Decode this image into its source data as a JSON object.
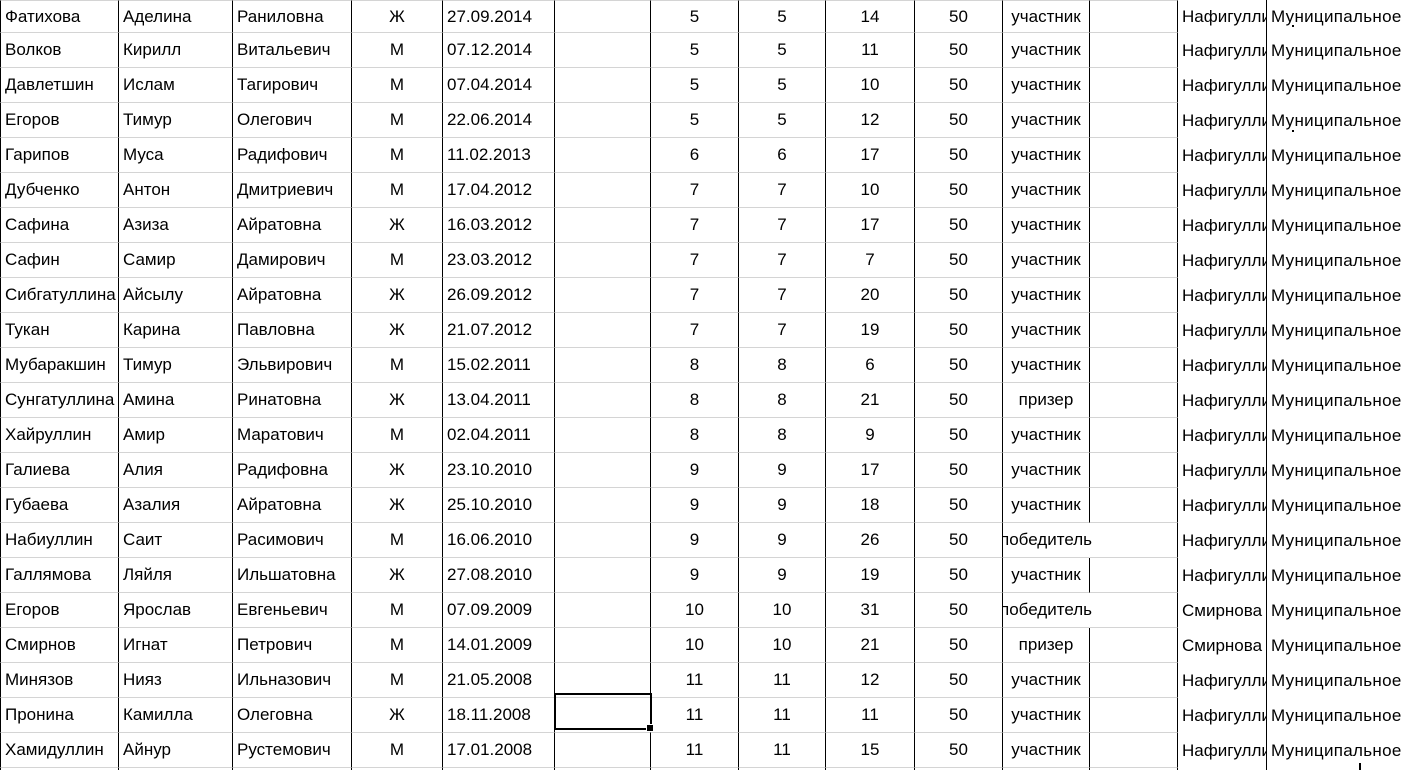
{
  "colors": {
    "background": "#ffffff",
    "text": "#000000",
    "cell_border": "#000000",
    "grid_line": "#d4d4d4",
    "selection_border": "#000000"
  },
  "selection": {
    "row": 21,
    "column_after": "birth_date",
    "note": "empty cell selected with thick border and fill handle"
  },
  "table": {
    "overflow_status_value": "победитель",
    "rows": [
      {
        "surname": "Фатихова",
        "first_name": "Аделина",
        "patronymic": "Раниловна",
        "gender": "Ж",
        "birth_date": "27.09.2014",
        "blank1": "",
        "grade": "5",
        "grade2": "5",
        "score": "14",
        "max_score": "50",
        "status": "участник",
        "blank2": "",
        "teacher": "Нафигуллина",
        "organization": "Муниципальное"
      },
      {
        "surname": "Волков",
        "first_name": "Кирилл",
        "patronymic": "Витальевич",
        "gender": "М",
        "birth_date": "07.12.2014",
        "blank1": "",
        "grade": "5",
        "grade2": "5",
        "score": "11",
        "max_score": "50",
        "status": "участник",
        "blank2": "",
        "teacher": "Нафигуллина",
        "organization": "Муниципальное"
      },
      {
        "surname": "Давлетшин",
        "first_name": "Ислам",
        "patronymic": "Тагирович",
        "gender": "М",
        "birth_date": "07.04.2014",
        "blank1": "",
        "grade": "5",
        "grade2": "5",
        "score": "10",
        "max_score": "50",
        "status": "участник",
        "blank2": "",
        "teacher": "Нафигуллина",
        "organization": "Муниципальное"
      },
      {
        "surname": "Егоров",
        "first_name": "Тимур",
        "patronymic": "Олегович",
        "gender": "М",
        "birth_date": "22.06.2014",
        "blank1": "",
        "grade": "5",
        "grade2": "5",
        "score": "12",
        "max_score": "50",
        "status": "участник",
        "blank2": "",
        "teacher": "Нафигуллина",
        "organization": "Муниципальное"
      },
      {
        "surname": "Гарипов",
        "first_name": "Муса",
        "patronymic": "Радифович",
        "gender": "М",
        "birth_date": "11.02.2013",
        "blank1": "",
        "grade": "6",
        "grade2": "6",
        "score": "17",
        "max_score": "50",
        "status": "участник",
        "blank2": "",
        "teacher": "Нафигуллина",
        "organization": "Муниципальное"
      },
      {
        "surname": "Дубченко",
        "first_name": "Антон",
        "patronymic": "Дмитриевич",
        "gender": "М",
        "birth_date": "17.04.2012",
        "blank1": "",
        "grade": "7",
        "grade2": "7",
        "score": "10",
        "max_score": "50",
        "status": "участник",
        "blank2": "",
        "teacher": "Нафигуллина",
        "organization": "Муниципальное"
      },
      {
        "surname": "Сафина",
        "first_name": "Азиза",
        "patronymic": "Айратовна",
        "gender": "Ж",
        "birth_date": "16.03.2012",
        "blank1": "",
        "grade": "7",
        "grade2": "7",
        "score": "17",
        "max_score": "50",
        "status": "участник",
        "blank2": "",
        "teacher": "Нафигуллина",
        "organization": "Муниципальное"
      },
      {
        "surname": "Сафин",
        "first_name": "Самир",
        "patronymic": "Дамирович",
        "gender": "М",
        "birth_date": "23.03.2012",
        "blank1": "",
        "grade": "7",
        "grade2": "7",
        "score": "7",
        "max_score": "50",
        "status": "участник",
        "blank2": "",
        "teacher": "Нафигуллина",
        "organization": "Муниципальное"
      },
      {
        "surname": "Сибгатуллина",
        "first_name": "Айсылу",
        "patronymic": "Айратовна",
        "gender": "Ж",
        "birth_date": "26.09.2012",
        "blank1": "",
        "grade": "7",
        "grade2": "7",
        "score": "20",
        "max_score": "50",
        "status": "участник",
        "blank2": "",
        "teacher": "Нафигуллина",
        "organization": "Муниципальное"
      },
      {
        "surname": "Тукан",
        "first_name": "Карина",
        "patronymic": "Павловна",
        "gender": "Ж",
        "birth_date": "21.07.2012",
        "blank1": "",
        "grade": "7",
        "grade2": "7",
        "score": "19",
        "max_score": "50",
        "status": "участник",
        "blank2": "",
        "teacher": "Нафигуллина",
        "organization": "Муниципальное"
      },
      {
        "surname": "Мубаракшин",
        "first_name": "Тимур",
        "patronymic": "Эльвирович",
        "gender": "М",
        "birth_date": "15.02.2011",
        "blank1": "",
        "grade": "8",
        "grade2": "8",
        "score": "6",
        "max_score": "50",
        "status": "участник",
        "blank2": "",
        "teacher": "Нафигуллина",
        "organization": "Муниципальное"
      },
      {
        "surname": "Сунгатуллина",
        "first_name": "Амина",
        "patronymic": "Ринатовна",
        "gender": "Ж",
        "birth_date": "13.04.2011",
        "blank1": "",
        "grade": "8",
        "grade2": "8",
        "score": "21",
        "max_score": "50",
        "status": "призер",
        "blank2": "",
        "teacher": "Нафигуллина",
        "organization": "Муниципальное"
      },
      {
        "surname": "Хайруллин",
        "first_name": "Амир",
        "patronymic": "Маратович",
        "gender": "М",
        "birth_date": "02.04.2011",
        "blank1": "",
        "grade": "8",
        "grade2": "8",
        "score": "9",
        "max_score": "50",
        "status": "участник",
        "blank2": "",
        "teacher": "Нафигуллина",
        "organization": "Муниципальное"
      },
      {
        "surname": "Галиева",
        "first_name": "Алия",
        "patronymic": "Радифовна",
        "gender": "Ж",
        "birth_date": "23.10.2010",
        "blank1": "",
        "grade": "9",
        "grade2": "9",
        "score": "17",
        "max_score": "50",
        "status": "участник",
        "blank2": "",
        "teacher": "Нафигуллина",
        "organization": "Муниципальное"
      },
      {
        "surname": "Губаева",
        "first_name": "Азалия",
        "patronymic": "Айратовна",
        "gender": "Ж",
        "birth_date": "25.10.2010",
        "blank1": "",
        "grade": "9",
        "grade2": "9",
        "score": "18",
        "max_score": "50",
        "status": "участник",
        "blank2": "",
        "teacher": "Нафигуллина",
        "organization": "Муниципальное"
      },
      {
        "surname": "Набиуллин",
        "first_name": "Саит",
        "patronymic": "Расимович",
        "gender": "М",
        "birth_date": "16.06.2010",
        "blank1": "",
        "grade": "9",
        "grade2": "9",
        "score": "26",
        "max_score": "50",
        "status": "победитель",
        "blank2": "",
        "teacher": "Нафигуллина",
        "organization": "Муниципальное"
      },
      {
        "surname": "Галлямова",
        "first_name": "Ляйля",
        "patronymic": "Ильшатовна",
        "gender": "Ж",
        "birth_date": "27.08.2010",
        "blank1": "",
        "grade": "9",
        "grade2": "9",
        "score": "19",
        "max_score": "50",
        "status": "участник",
        "blank2": "",
        "teacher": "Нафигуллина",
        "organization": "Муниципальное"
      },
      {
        "surname": "Егоров",
        "first_name": "Ярослав",
        "patronymic": "Евгеньевич",
        "gender": "М",
        "birth_date": "07.09.2009",
        "blank1": "",
        "grade": "10",
        "grade2": "10",
        "score": "31",
        "max_score": "50",
        "status": "победитель",
        "blank2": "",
        "teacher": "Смирнова",
        "organization": "Муниципальное"
      },
      {
        "surname": "Смирнов",
        "first_name": "Игнат",
        "patronymic": "Петрович",
        "gender": "М",
        "birth_date": "14.01.2009",
        "blank1": "",
        "grade": "10",
        "grade2": "10",
        "score": "21",
        "max_score": "50",
        "status": "призер",
        "blank2": "",
        "teacher": "Смирнова",
        "organization": "Муниципальное"
      },
      {
        "surname": "Минязов",
        "first_name": "Нияз",
        "patronymic": "Ильназович",
        "gender": "М",
        "birth_date": "21.05.2008",
        "blank1": "",
        "grade": "11",
        "grade2": "11",
        "score": "12",
        "max_score": "50",
        "status": "участник",
        "blank2": "",
        "teacher": "Нафигуллина",
        "organization": "Муниципальное"
      },
      {
        "surname": "Пронина",
        "first_name": "Камилла",
        "patronymic": "Олеговна",
        "gender": "Ж",
        "birth_date": "18.11.2008",
        "blank1": "",
        "grade": "11",
        "grade2": "11",
        "score": "11",
        "max_score": "50",
        "status": "участник",
        "blank2": "",
        "teacher": "Нафигуллина",
        "organization": "Муниципальное"
      },
      {
        "surname": "Хамидуллин",
        "first_name": "Айнур",
        "patronymic": "Рустемович",
        "gender": "М",
        "birth_date": "17.01.2008",
        "blank1": "",
        "grade": "11",
        "grade2": "11",
        "score": "15",
        "max_score": "50",
        "status": "участник",
        "blank2": "",
        "teacher": "Нафигуллина",
        "organization": "Муниципальное"
      }
    ]
  }
}
